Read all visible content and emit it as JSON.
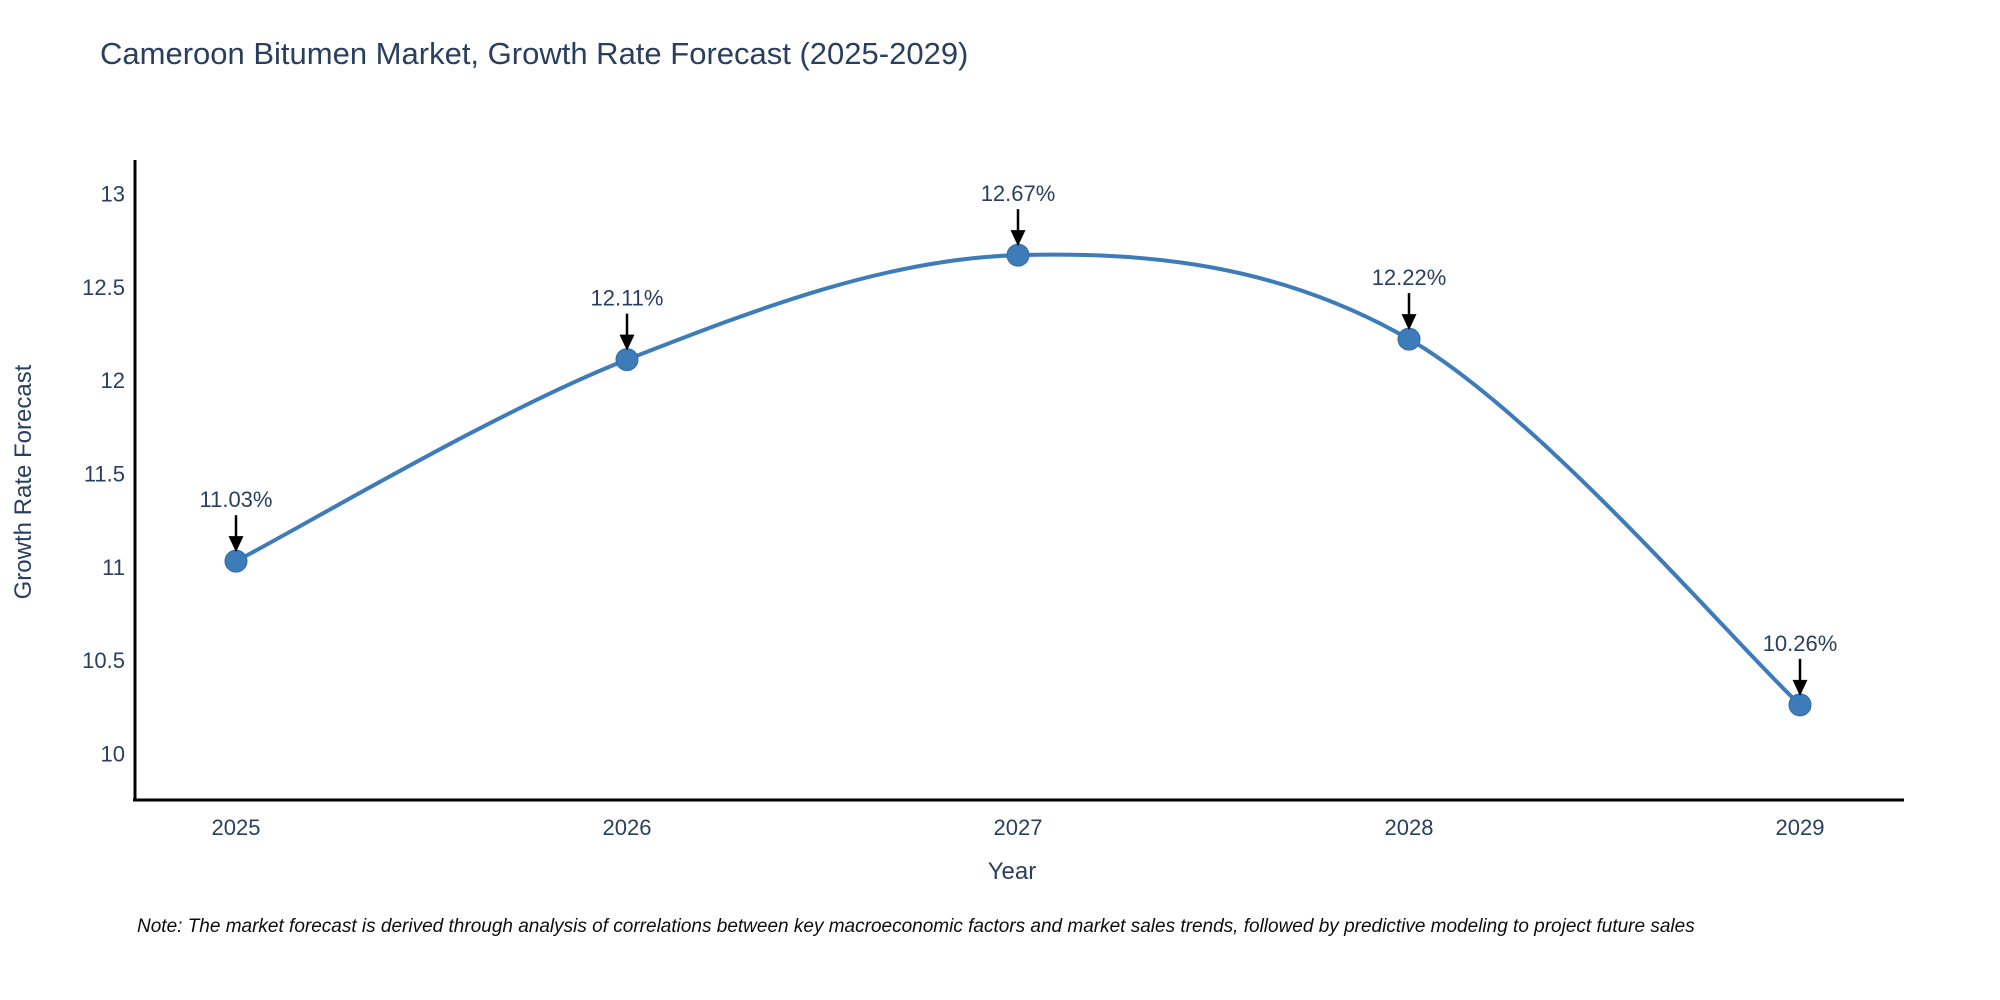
{
  "chart_data": {
    "type": "line",
    "title": "Cameroon Bitumen Market, Growth Rate Forecast (2025-2029)",
    "xlabel": "Year",
    "ylabel": "Growth Rate Forecast",
    "x": [
      2025,
      2026,
      2027,
      2028,
      2029
    ],
    "xtick_labels": [
      "2025",
      "2026",
      "2027",
      "2028",
      "2029"
    ],
    "series": [
      {
        "name": "Growth Rate Forecast",
        "values": [
          11.03,
          12.11,
          12.67,
          12.22,
          10.26
        ]
      }
    ],
    "point_labels": [
      "11.03%",
      "12.11%",
      "12.67%",
      "12.22%",
      "10.26%"
    ],
    "yticks": [
      10,
      10.5,
      11,
      11.5,
      12,
      12.5,
      13
    ],
    "ytick_labels": [
      "10",
      "10.5",
      "11",
      "11.5",
      "12",
      "12.5",
      "13"
    ],
    "ylim": [
      9.75,
      13.18
    ],
    "grid": false,
    "legend_position": "none",
    "line_shape": "spline",
    "colors": {
      "line": "#3d7cb8",
      "marker_fill": "#3d7cb8",
      "marker_edge": "#2f6ba5",
      "axis_line": "#000000",
      "tick_text": "#2a3f5f",
      "annotation_text": "#2a3f5f",
      "annotation_arrow": "#000000",
      "background": "#ffffff"
    },
    "note": "Note: The market forecast is derived through analysis of correlations between key macroeconomic factors and market sales trends, followed by predictive modeling to project future sales"
  }
}
